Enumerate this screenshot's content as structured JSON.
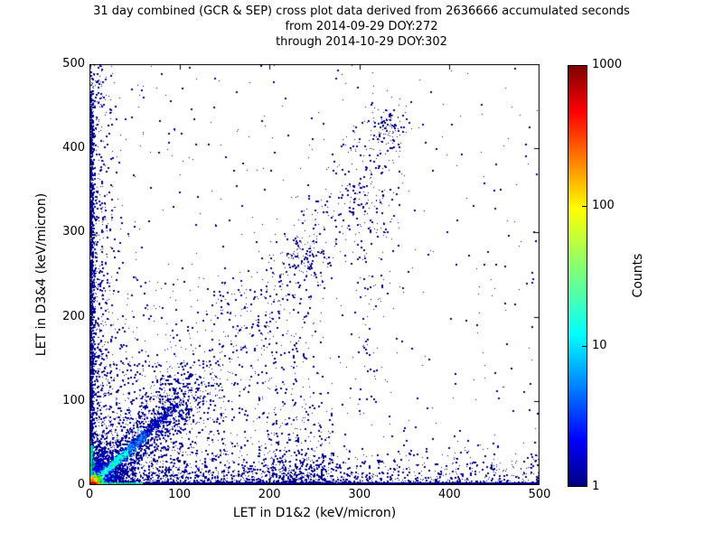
{
  "chart_data": {
    "type": "heatmap",
    "subtype": "2d-histogram-cross-plot",
    "title_lines": [
      "31 day combined (GCR & SEP) cross plot data derived from 2636666 accumulated seconds",
      "from 2014-09-29 DOY:272",
      "through 2014-10-29 DOY:302"
    ],
    "duration_days": 31,
    "accumulated_seconds": 2636666,
    "start_date": "2014-09-29",
    "start_doy": 272,
    "end_date": "2014-10-29",
    "end_doy": 302,
    "xlabel": "LET in D1&2 (keV/micron)",
    "ylabel": "LET in D3&4 (keV/micron)",
    "xlim": [
      0,
      500
    ],
    "ylim": [
      0,
      500
    ],
    "xticks": [
      0,
      100,
      200,
      300,
      400,
      500
    ],
    "yticks": [
      0,
      100,
      200,
      300,
      400,
      500
    ],
    "grid": false,
    "frame_color": "#000000",
    "background_color": "#ffffff",
    "base_point_color": "#000080",
    "colorbar": {
      "label": "Counts",
      "scale": "log",
      "range": [
        1,
        1000
      ],
      "ticks": [
        1,
        10,
        100,
        1000
      ],
      "colormap": "jet",
      "gradient_bottom_to_top": [
        [
          "#000080",
          0.0
        ],
        [
          "#0000ff",
          0.11
        ],
        [
          "#00ffff",
          0.36
        ],
        [
          "#7dff7a",
          0.51
        ],
        [
          "#ffff00",
          0.66
        ],
        [
          "#ff0000",
          0.89
        ],
        [
          "#7f0000",
          1.0
        ]
      ]
    },
    "seed": 42,
    "features": [
      {
        "name": "uniform-sparse",
        "kind": "uniform",
        "x0": 0,
        "x1": 500,
        "y0": 0,
        "y1": 500,
        "count": 520,
        "palette": [
          "#000080",
          "#00008f"
        ]
      },
      {
        "name": "lowerleft-fan-wide",
        "kind": "uniform",
        "x0": 0,
        "x1": 250,
        "y0": 0,
        "y1": 250,
        "count": 520,
        "palette": [
          "#000080",
          "#000099"
        ]
      },
      {
        "name": "lowerleft-fan-tight",
        "kind": "uniform",
        "x0": 0,
        "x1": 150,
        "y0": 0,
        "y1": 150,
        "count": 480,
        "palette": [
          "#000080",
          "#000099"
        ]
      },
      {
        "name": "bottom-scatter",
        "kind": "hexp",
        "x0": 0,
        "x1": 500,
        "xbias": 1.7,
        "scale": 15,
        "count": 1700,
        "palette": [
          "#000080",
          "#000090"
        ]
      },
      {
        "name": "bottom-patch",
        "kind": "gaussian",
        "cx": 240,
        "cy": 12,
        "sx": 38,
        "sy": 14,
        "count": 260,
        "palette": [
          "#000080",
          "#000090"
        ]
      },
      {
        "name": "left-scatter",
        "kind": "vexp",
        "y0": 0,
        "y1": 500,
        "ybias": 1.25,
        "scale": 11,
        "count": 900,
        "palette": [
          "#000080",
          "#000090"
        ]
      },
      {
        "name": "bottom-band",
        "kind": "hband",
        "x0": 0,
        "x1": 500,
        "xbias": 1.25,
        "sigma": 2.0,
        "count": 2400,
        "palette": [
          "#000085",
          "#0000a0"
        ]
      },
      {
        "name": "left-band",
        "kind": "vband",
        "y0": 0,
        "y1": 470,
        "ybias": 1.15,
        "sigma": 2.0,
        "count": 1000,
        "palette": [
          "#000085",
          "#0000a0"
        ]
      },
      {
        "name": "mid-swath-1",
        "kind": "line",
        "x1": 100,
        "y1": 100,
        "x2": 235,
        "y2": 260,
        "spread": 20,
        "bias": 1,
        "count": 230,
        "palette": [
          "#000080",
          "#000090"
        ]
      },
      {
        "name": "mid-swath-2",
        "kind": "line",
        "x1": 235,
        "y1": 265,
        "x2": 340,
        "y2": 445,
        "spread": 22,
        "bias": 1,
        "count": 170,
        "palette": [
          "#000080",
          "#000090"
        ]
      },
      {
        "name": "upper-column",
        "kind": "line",
        "x1": 295,
        "y1": 80,
        "x2": 332,
        "y2": 420,
        "spread": 13,
        "bias": 1,
        "count": 110,
        "palette": [
          "#000080"
        ]
      },
      {
        "name": "mid-column",
        "kind": "vcol",
        "x0": 190,
        "x1": 270,
        "scale": 85,
        "count": 240,
        "palette": [
          "#000080",
          "#000090"
        ]
      },
      {
        "name": "cluster-a",
        "kind": "gaussian",
        "cx": 238,
        "cy": 268,
        "sx": 14,
        "sy": 13,
        "count": 110,
        "palette": [
          "#000080",
          "#000090"
        ]
      },
      {
        "name": "cluster-b",
        "kind": "gaussian",
        "cx": 333,
        "cy": 428,
        "sx": 9,
        "sy": 13,
        "count": 75,
        "palette": [
          "#000080"
        ]
      },
      {
        "name": "cluster-c",
        "kind": "gaussian",
        "cx": 303,
        "cy": 330,
        "sx": 16,
        "sy": 28,
        "count": 85,
        "palette": [
          "#000080"
        ]
      },
      {
        "name": "diag-fan",
        "kind": "line",
        "x1": 0,
        "y1": 0,
        "x2": 112,
        "y2": 112,
        "spread": 16,
        "bias": 1.6,
        "count": 1500,
        "palette": [
          "#000080",
          "#000095"
        ]
      },
      {
        "name": "diag-main",
        "kind": "line",
        "x1": 4,
        "y1": 4,
        "x2": 96,
        "y2": 96,
        "spread": 3.2,
        "bias": 1.5,
        "count": 800,
        "palette": [
          "#0000a0",
          "#0000c0",
          "#0018d0"
        ]
      },
      {
        "name": "origin-halo",
        "kind": "gaussian",
        "cx": 6,
        "cy": 6,
        "sx": 16,
        "sy": 16,
        "count": 1600,
        "palette": [
          "#000090",
          "#0000b0",
          "#0000d0"
        ]
      },
      {
        "name": "origin-solid",
        "kind": "gaussian",
        "cx": 4,
        "cy": 4,
        "sx": 9,
        "sy": 9,
        "count": 1900,
        "palette": [
          "#0000c8",
          "#0008e8",
          "#1020ff"
        ]
      },
      {
        "name": "bottom-band-bright",
        "kind": "hband",
        "x0": 2,
        "x1": 58,
        "xbias": 1.4,
        "sigma": 1.5,
        "count": 260,
        "palette": [
          "#00c060",
          "#00e0b0",
          "#20a0ff",
          "#60ff60"
        ]
      },
      {
        "name": "left-band-bright",
        "kind": "vband",
        "y0": 2,
        "y1": 48,
        "ybias": 1.4,
        "sigma": 1.5,
        "count": 180,
        "palette": [
          "#00c060",
          "#00e0c0",
          "#20a0ff"
        ]
      },
      {
        "name": "diag-streak-mid",
        "kind": "line",
        "x1": 20,
        "y1": 20,
        "x2": 62,
        "y2": 62,
        "spread": 2.4,
        "bias": 1.2,
        "count": 300,
        "palette": [
          "#0080ff",
          "#00a0ff",
          "#0050ff"
        ]
      },
      {
        "name": "diag-streak-bright",
        "kind": "line",
        "x1": 2,
        "y1": 2,
        "x2": 40,
        "y2": 40,
        "spread": 1.8,
        "bias": 1.1,
        "count": 380,
        "palette": [
          "#00ffff",
          "#00ffa0",
          "#40ffff",
          "#00e0ff"
        ]
      },
      {
        "name": "origin-ring-cyan",
        "kind": "gaussian",
        "cx": 3.5,
        "cy": 3.5,
        "sx": 6,
        "sy": 6,
        "count": 300,
        "palette": [
          "#00e0e0",
          "#00c0ff"
        ]
      },
      {
        "name": "origin-ring-green",
        "kind": "gaussian",
        "cx": 3,
        "cy": 3,
        "sx": 4.5,
        "sy": 4.5,
        "count": 220,
        "palette": [
          "#40e000",
          "#a0f000"
        ]
      },
      {
        "name": "origin-ring-yellow",
        "kind": "gaussian",
        "cx": 2.5,
        "cy": 2.5,
        "sx": 3.2,
        "sy": 3.2,
        "count": 150,
        "palette": [
          "#ffe000",
          "#ffc000"
        ]
      },
      {
        "name": "origin-ring-orange",
        "kind": "gaussian",
        "cx": 2,
        "cy": 2,
        "sx": 2.2,
        "sy": 2.2,
        "count": 100,
        "palette": [
          "#ff7000",
          "#ff9000"
        ]
      },
      {
        "name": "origin-core-red",
        "kind": "gaussian",
        "cx": 1.5,
        "cy": 1.5,
        "sx": 1.4,
        "sy": 1.4,
        "count": 80,
        "size": 2,
        "palette": [
          "#e00000",
          "#c00000"
        ]
      }
    ]
  }
}
